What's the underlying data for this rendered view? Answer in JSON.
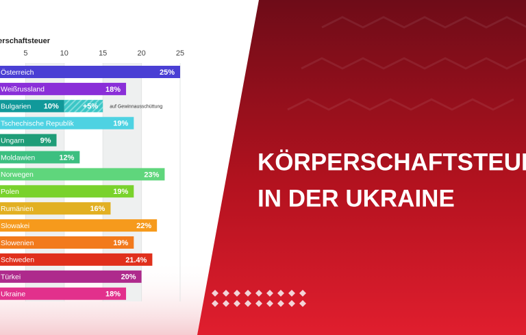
{
  "chart_data": {
    "type": "bar",
    "orientation": "horizontal",
    "title": "Körperschaftsteuer",
    "categories": [
      "Österreich",
      "Weißrussland",
      "Bulgarien",
      "Tschechische Republik",
      "Ungarn",
      "Moldawien",
      "Norwegen",
      "Polen",
      "Rumänien",
      "Slowakei",
      "Slowenien",
      "Schweden",
      "Türkei",
      "Ukraine"
    ],
    "values": [
      25,
      18,
      10,
      19,
      9,
      12,
      23,
      19,
      16,
      22,
      19,
      21.4,
      20,
      18
    ],
    "value_labels": [
      "25%",
      "18%",
      "10%",
      "19%",
      "9%",
      "12%",
      "23%",
      "19%",
      "16%",
      "22%",
      "19%",
      "21.4%",
      "20%",
      "18%"
    ],
    "colors": [
      "#4a3fd4",
      "#8a2fd8",
      "#11999a",
      "#4ed2e2",
      "#1f9d78",
      "#3cbf80",
      "#5fd67c",
      "#79d22c",
      "#e2b022",
      "#f69a1c",
      "#f27a1c",
      "#e0301c",
      "#ae2a8c",
      "#e2308c"
    ],
    "extra_values": [
      null,
      null,
      5,
      null,
      null,
      null,
      null,
      null,
      null,
      null,
      null,
      null,
      null,
      null
    ],
    "extra_value_labels": [
      null,
      null,
      "+5%",
      null,
      null,
      null,
      null,
      null,
      null,
      null,
      null,
      null,
      null,
      null
    ],
    "extra_color": "#3cc6c6",
    "extra_note": "auf Gewinnausschüttung",
    "xlim": [
      0,
      25
    ],
    "xticks": [
      5,
      10,
      15,
      20,
      25
    ],
    "grid": true
  },
  "headline": [
    "KÖRPERSCHAFTSTEUER",
    "IN DER UKRAINE"
  ]
}
